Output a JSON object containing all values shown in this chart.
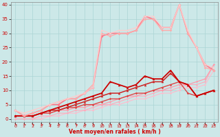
{
  "xlabel": "Vent moyen/en rafales ( km/h )",
  "xlim": [
    -0.5,
    23.5
  ],
  "ylim": [
    -1,
    41
  ],
  "xticks": [
    0,
    1,
    2,
    3,
    4,
    5,
    6,
    7,
    8,
    9,
    10,
    11,
    12,
    13,
    14,
    15,
    16,
    17,
    18,
    19,
    20,
    21,
    22,
    23
  ],
  "yticks": [
    0,
    5,
    10,
    15,
    20,
    25,
    30,
    35,
    40
  ],
  "bg_color": "#cce8e8",
  "grid_color": "#aad4d4",
  "lines": [
    {
      "x": [
        0,
        1,
        2,
        3,
        4,
        5,
        6,
        7,
        8,
        9,
        10,
        11,
        12,
        13,
        14,
        15,
        16,
        17,
        18,
        19,
        20,
        21,
        22,
        23
      ],
      "y": [
        0,
        0,
        0,
        0,
        1,
        1,
        2,
        2,
        3,
        3,
        4,
        5,
        5,
        6,
        7,
        7,
        8,
        9,
        9,
        10,
        11,
        11,
        12,
        17
      ],
      "color": "#ffbbcc",
      "lw": 0.8,
      "marker": "D",
      "ms": 1.5
    },
    {
      "x": [
        0,
        1,
        2,
        3,
        4,
        5,
        6,
        7,
        8,
        9,
        10,
        11,
        12,
        13,
        14,
        15,
        16,
        17,
        18,
        19,
        20,
        21,
        22,
        23
      ],
      "y": [
        0,
        0,
        0,
        1,
        1,
        2,
        2,
        3,
        3,
        4,
        5,
        5,
        6,
        7,
        8,
        8,
        9,
        10,
        10,
        11,
        12,
        12,
        13,
        19
      ],
      "color": "#ffaabb",
      "lw": 0.8,
      "marker": "D",
      "ms": 1.5
    },
    {
      "x": [
        0,
        1,
        2,
        3,
        4,
        5,
        6,
        7,
        8,
        9,
        10,
        11,
        12,
        13,
        14,
        15,
        16,
        17,
        18,
        19,
        20,
        21,
        22,
        23
      ],
      "y": [
        1,
        1,
        1,
        2,
        2,
        3,
        3,
        4,
        4,
        5,
        5,
        6,
        7,
        8,
        8,
        9,
        10,
        10,
        11,
        12,
        12,
        13,
        14,
        19
      ],
      "color": "#ff99aa",
      "lw": 0.9,
      "marker": "D",
      "ms": 1.5
    },
    {
      "x": [
        0,
        1,
        2,
        3,
        4,
        5,
        6,
        7,
        8,
        9,
        10,
        11,
        12,
        13,
        14,
        15,
        16,
        17,
        18,
        19,
        20,
        21,
        22,
        23
      ],
      "y": [
        1,
        1,
        1,
        2,
        2,
        3,
        4,
        4,
        5,
        5,
        6,
        7,
        7,
        8,
        9,
        9,
        10,
        11,
        12,
        13,
        9,
        8,
        9,
        10
      ],
      "color": "#dd4444",
      "lw": 1.0,
      "marker": "D",
      "ms": 1.8
    },
    {
      "x": [
        0,
        1,
        2,
        3,
        4,
        5,
        6,
        7,
        8,
        9,
        10,
        11,
        12,
        13,
        14,
        15,
        16,
        17,
        18,
        19,
        20,
        21,
        22,
        23
      ],
      "y": [
        1,
        1,
        1,
        2,
        3,
        3,
        4,
        5,
        6,
        7,
        8,
        9,
        9,
        10,
        11,
        12,
        13,
        13,
        16,
        13,
        12,
        8,
        9,
        10
      ],
      "color": "#cc2222",
      "lw": 1.1,
      "marker": "^",
      "ms": 2.5
    },
    {
      "x": [
        0,
        1,
        2,
        3,
        4,
        5,
        6,
        7,
        8,
        9,
        10,
        11,
        12,
        13,
        14,
        15,
        16,
        17,
        18,
        19,
        20,
        21,
        22,
        23
      ],
      "y": [
        1,
        1,
        1,
        2,
        3,
        4,
        5,
        6,
        7,
        8,
        9,
        13,
        12,
        11,
        12,
        15,
        14,
        14,
        17,
        13,
        12,
        8,
        9,
        10
      ],
      "color": "#cc0000",
      "lw": 1.3,
      "marker": "^",
      "ms": 2.5
    },
    {
      "x": [
        0,
        1,
        2,
        3,
        4,
        5,
        6,
        7,
        8,
        9,
        10,
        11,
        12,
        13,
        14,
        15,
        16,
        17,
        18,
        19,
        20,
        21,
        22,
        23
      ],
      "y": [
        3,
        1,
        2,
        3,
        5,
        5,
        7,
        7,
        9,
        11,
        29,
        30,
        30,
        30,
        31,
        36,
        35,
        32,
        32,
        40,
        30,
        25,
        19,
        17
      ],
      "color": "#ff7788",
      "lw": 1.2,
      "marker": "D",
      "ms": 2.0
    },
    {
      "x": [
        0,
        1,
        2,
        3,
        4,
        5,
        6,
        7,
        8,
        9,
        10,
        11,
        12,
        13,
        14,
        15,
        16,
        17,
        18,
        19,
        20,
        21,
        22,
        23
      ],
      "y": [
        3,
        1,
        2,
        3,
        5,
        6,
        7,
        7,
        9,
        12,
        30,
        29,
        30,
        30,
        31,
        35,
        35,
        31,
        31,
        40,
        30,
        25,
        18,
        17
      ],
      "color": "#ffaaaa",
      "lw": 1.0,
      "marker": "D",
      "ms": 1.8
    },
    {
      "x": [
        0,
        1,
        2,
        3,
        4,
        5,
        6,
        7,
        8,
        9,
        10,
        11,
        12,
        13,
        14,
        15,
        16,
        17,
        18,
        19,
        20,
        21,
        22,
        23
      ],
      "y": [
        3,
        2,
        3,
        4,
        5,
        6,
        7,
        8,
        9,
        11,
        31,
        30,
        31,
        31,
        32,
        36,
        36,
        32,
        32,
        40,
        31,
        25,
        19,
        18
      ],
      "color": "#ffcccc",
      "lw": 0.9,
      "marker": "D",
      "ms": 1.5
    }
  ]
}
